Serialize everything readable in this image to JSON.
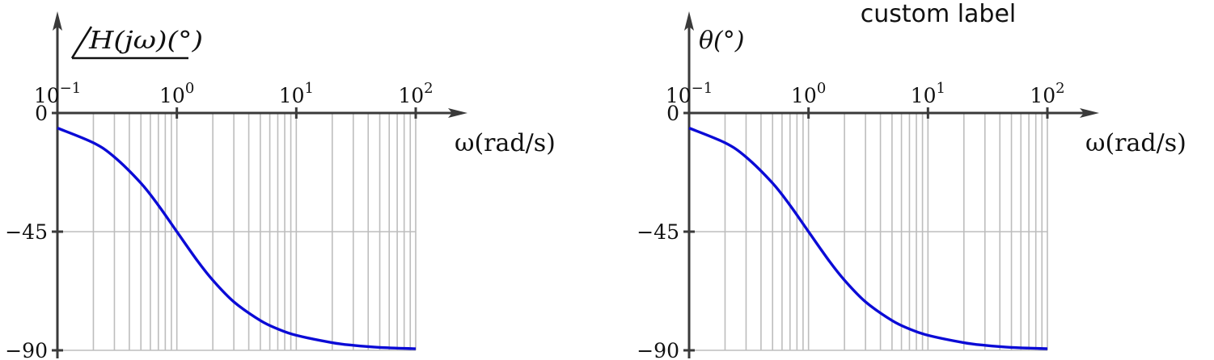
{
  "chart_data": [
    {
      "type": "line",
      "title": "",
      "ylabel": "∠H(jω)(°)",
      "ylabel_angle_prefix": true,
      "xlabel": "ω(rad/s)",
      "x_scale": "log",
      "xlim": [
        0.1,
        100
      ],
      "ylim": [
        -90,
        0
      ],
      "x_ticks": [
        {
          "value": 0.1,
          "base": "10",
          "exp": "−1"
        },
        {
          "value": 1,
          "base": "10",
          "exp": "0"
        },
        {
          "value": 10,
          "base": "10",
          "exp": "1"
        },
        {
          "value": 100,
          "base": "10",
          "exp": "2"
        }
      ],
      "y_ticks": [
        {
          "value": 0,
          "label": "0"
        },
        {
          "value": -45,
          "label": "−45"
        },
        {
          "value": -90,
          "label": "−90"
        }
      ],
      "grid": true,
      "series": [
        {
          "color": "#0b0bd6",
          "x": [
            0.1,
            0.2,
            0.3,
            0.5,
            0.7,
            1,
            1.5,
            2,
            3,
            5,
            7,
            10,
            20,
            30,
            50,
            100
          ],
          "y": [
            -5.7,
            -11.3,
            -16.7,
            -26.6,
            -35.0,
            -45.0,
            -56.3,
            -63.4,
            -71.6,
            -78.7,
            -81.9,
            -84.3,
            -87.1,
            -88.1,
            -88.9,
            -89.4
          ]
        }
      ]
    },
    {
      "type": "line",
      "title": "custom label",
      "ylabel": "θ(°)",
      "ylabel_angle_prefix": false,
      "xlabel": "ω(rad/s)",
      "x_scale": "log",
      "xlim": [
        0.1,
        100
      ],
      "ylim": [
        -90,
        0
      ],
      "x_ticks": [
        {
          "value": 0.1,
          "base": "10",
          "exp": "−1"
        },
        {
          "value": 1,
          "base": "10",
          "exp": "0"
        },
        {
          "value": 10,
          "base": "10",
          "exp": "1"
        },
        {
          "value": 100,
          "base": "10",
          "exp": "2"
        }
      ],
      "y_ticks": [
        {
          "value": 0,
          "label": "0"
        },
        {
          "value": -45,
          "label": "−45"
        },
        {
          "value": -90,
          "label": "−90"
        }
      ],
      "grid": true,
      "series": [
        {
          "color": "#0b0bd6",
          "x": [
            0.1,
            0.2,
            0.3,
            0.5,
            0.7,
            1,
            1.5,
            2,
            3,
            5,
            7,
            10,
            20,
            30,
            50,
            100
          ],
          "y": [
            -5.7,
            -11.3,
            -16.7,
            -26.6,
            -35.0,
            -45.0,
            -56.3,
            -63.4,
            -71.6,
            -78.7,
            -81.9,
            -84.3,
            -87.1,
            -88.1,
            -88.9,
            -89.4
          ]
        }
      ]
    }
  ]
}
